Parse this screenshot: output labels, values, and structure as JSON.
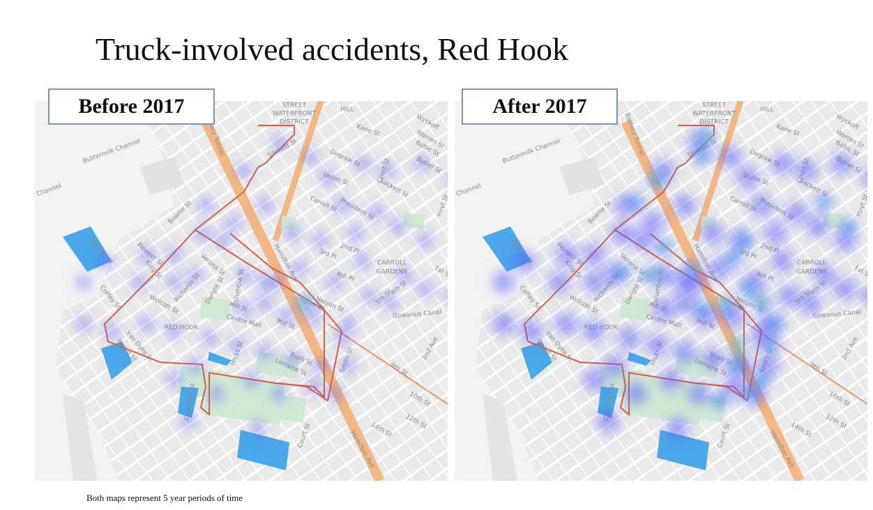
{
  "title": "Truck-involved accidents, Red Hook",
  "maps": [
    {
      "label": "Before 2017"
    },
    {
      "label": "After 2017"
    }
  ],
  "street_labels": [
    "STREET",
    "WATERFRONT",
    "DISTRICT",
    "HILL",
    "Buttermilk Channel",
    "ilk Channel",
    "Kane St",
    "Sackett St",
    "Degraw St",
    "Union St",
    "Carroll St",
    "President St",
    "Court St",
    "Sackett St",
    "Bowne St",
    "Sullivan St",
    "Pioneer St",
    "King St",
    "Verona St",
    "Richards St",
    "Dwight St",
    "Columbia St",
    "Coffey St",
    "Wolcott St",
    "Mill St",
    "Centre Mall",
    "Mill St",
    "RED HOOK",
    "Van Dyke St",
    "Hamilton Ave",
    "Hicks St",
    "Bush St",
    "Lorraine St",
    "Columbia St",
    "Court St",
    "Luquer St",
    "Nelson St",
    "4th Pl",
    "3rd Pl",
    "2nd Pl",
    "5th St",
    "4th St",
    "CARROLL",
    "GARDENS",
    "Gowanus Canal",
    "9th St",
    "2nd Ave",
    "10th St",
    "12th St",
    "14th St",
    "Hamilton Ave",
    "Butler St",
    "Baltic St",
    "Warren St",
    "Wyckoff",
    "1st St",
    "Smith St",
    "Battery Tunnel",
    "Hoyt St",
    "Beard St"
  ],
  "caption": "Both maps represent 5 year periods of time"
}
